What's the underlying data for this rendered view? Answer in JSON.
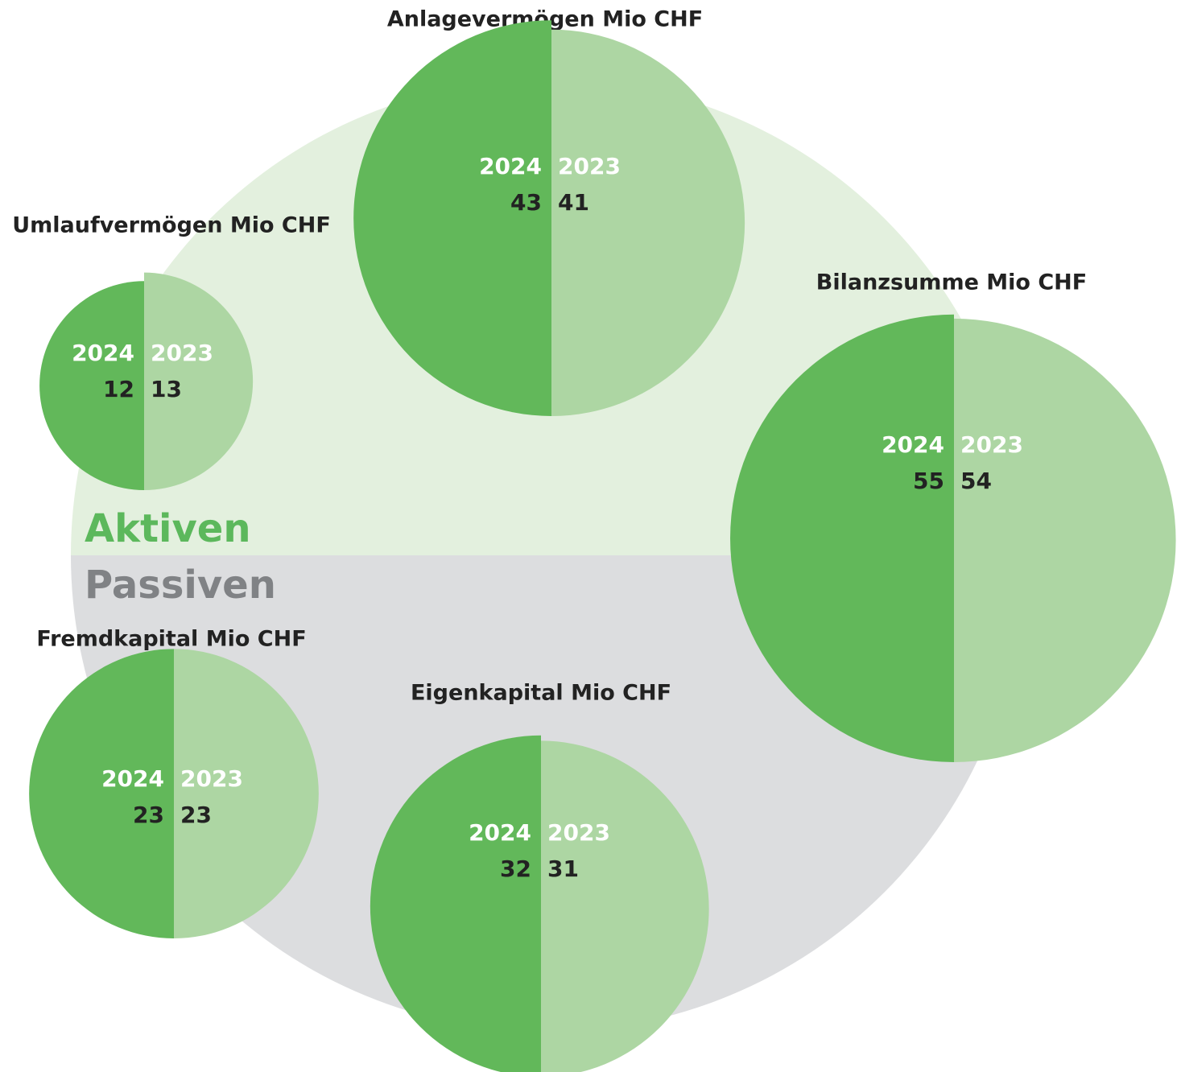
{
  "chart_data": {
    "type": "half-bubble",
    "section_labels": {
      "top": "Aktiven",
      "bottom": "Passiven"
    },
    "colors": {
      "top_bg": "#e3f0de",
      "bottom_bg": "#dcdddf",
      "top_text": "#5cb85c",
      "bottom_text": "#808285"
    },
    "series": [
      {
        "name": "2024",
        "color": "#62b85a"
      },
      {
        "name": "2023",
        "color": "#add6a3"
      }
    ],
    "items": [
      {
        "title": "Umlaufvermögen Mio CHF",
        "values": [
          12,
          13
        ]
      },
      {
        "title": "Anlagevermögen Mio CHF",
        "values": [
          43,
          41
        ]
      },
      {
        "title": "Bilanzsumme Mio CHF",
        "values": [
          55,
          54
        ]
      },
      {
        "title": "Fremdkapital Mio CHF",
        "values": [
          23,
          23
        ]
      },
      {
        "title": "Eigenkapital Mio CHF",
        "values": [
          32,
          31
        ]
      }
    ]
  }
}
